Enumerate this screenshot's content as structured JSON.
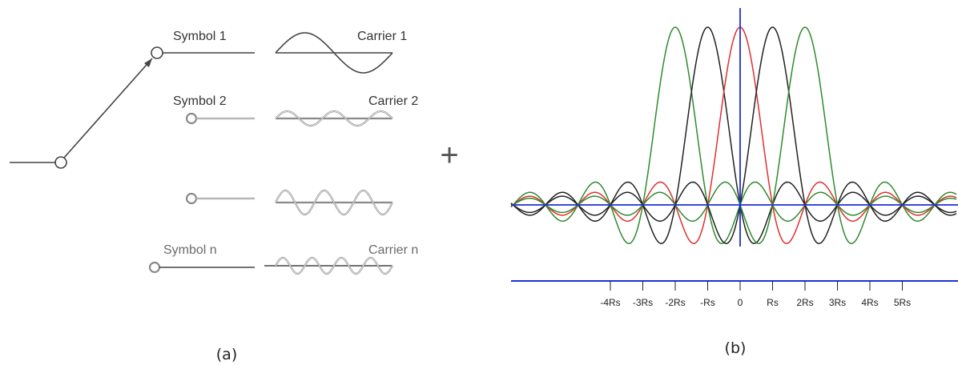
{
  "figure_a": {
    "caption": "(a)",
    "branches": [
      {
        "symbol_label": "Symbol 1",
        "carrier_label": "Carrier 1",
        "cycles": 1,
        "active": true
      },
      {
        "symbol_label": "Symbol 2",
        "carrier_label": "Carrier 2",
        "cycles": 2.5,
        "active": false
      },
      {
        "symbol_label": "",
        "carrier_label": "",
        "cycles": 3,
        "active": false
      },
      {
        "symbol_label": "Symbol n",
        "carrier_label": "Carrier n",
        "cycles": 4,
        "active": false
      }
    ],
    "sum_symbol": "+"
  },
  "figure_b": {
    "caption": "(b)",
    "tick_labels": [
      "-4Rs",
      "-3Rs",
      "-2Rs",
      "-Rs",
      "0",
      "Rs",
      "2Rs",
      "3Rs",
      "4Rs",
      "5Rs"
    ],
    "tick_values": [
      -4,
      -3,
      -2,
      -1,
      0,
      1,
      2,
      3,
      4,
      5
    ],
    "subcarriers": [
      {
        "center": -2,
        "color": "#2e8b2e"
      },
      {
        "center": -1,
        "color": "#222222"
      },
      {
        "center": 0,
        "color": "#e03030"
      },
      {
        "center": 1,
        "color": "#222222"
      },
      {
        "center": 2,
        "color": "#2e8b2e"
      }
    ],
    "axis_color": "#1f2fd6"
  }
}
